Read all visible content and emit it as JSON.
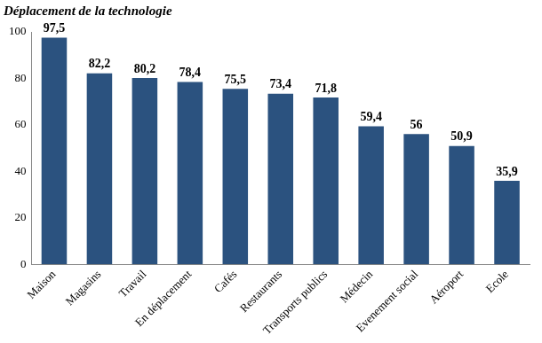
{
  "chart_data": {
    "type": "bar",
    "title": "Déplacement de la technologie",
    "categories": [
      "Maison",
      "Magasins",
      "Travail",
      "En déplacement",
      "Cafés",
      "Restaurants",
      "Transports publics",
      "Médecin",
      "Evenement social",
      "Aéroport",
      "Ecole"
    ],
    "values": [
      97.5,
      82.2,
      80.2,
      78.4,
      75.5,
      73.4,
      71.8,
      59.4,
      56,
      50.9,
      35.9
    ],
    "value_labels": [
      "97,5",
      "82,2",
      "80,2",
      "78,4",
      "75,5",
      "73,4",
      "71,8",
      "59,4",
      "56",
      "50,9",
      "35,9"
    ],
    "color": "#2b527f",
    "ylim": [
      0,
      100
    ],
    "yticks": [
      0,
      20,
      40,
      60,
      80,
      100
    ],
    "grid": false,
    "data_labels": true
  }
}
